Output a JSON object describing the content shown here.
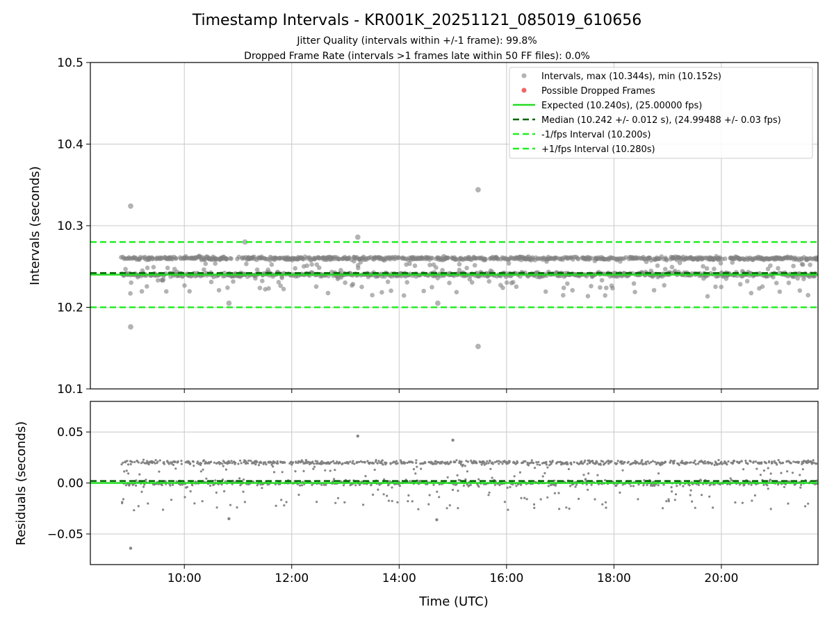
{
  "figure": {
    "title": "Timestamp Intervals - KR001K_20251121_085019_610656",
    "subtitle_line1": "Jitter Quality (intervals within +/-1 frame): 99.8%",
    "subtitle_line2": "Dropped Frame Rate (intervals >1 frames late within 50 FF files): 0.0%"
  },
  "colors": {
    "points": "#808080",
    "dropped": "#ee5555",
    "expected": "#22dd22",
    "median": "#006400",
    "interval": "#22ee22",
    "grid": "#c8c8c8"
  },
  "chart_data": [
    {
      "type": "scatter",
      "panel": "intervals",
      "ylabel": "Intervals (seconds)",
      "xlabel": "",
      "xlim": [
        8.25,
        21.8
      ],
      "ylim": [
        10.1,
        10.5
      ],
      "yticks": [
        10.1,
        10.2,
        10.3,
        10.4,
        10.5
      ],
      "ytick_labels": [
        "10.1",
        "10.2",
        "10.3",
        "10.4",
        "10.5"
      ],
      "xticks": [
        10,
        12,
        14,
        16,
        18,
        20
      ],
      "xtick_labels": [
        "10:00",
        "12:00",
        "14:00",
        "16:00",
        "18:00",
        "20:00"
      ],
      "grid": true,
      "legend_position": "top-right",
      "series_points": {
        "name": "Intervals, max (10.344s), min (10.152s)",
        "x_range": [
          8.83,
          21.8
        ],
        "bands": [
          10.26,
          10.24
        ],
        "spread": 0.02,
        "max": 10.344,
        "min": 10.152,
        "outliers": [
          [
            9.0,
            10.324
          ],
          [
            9.0,
            10.176
          ],
          [
            15.47,
            10.344
          ],
          [
            15.47,
            10.152
          ],
          [
            13.23,
            10.286
          ],
          [
            11.13,
            10.28
          ],
          [
            14.72,
            10.205
          ],
          [
            10.83,
            10.205
          ]
        ]
      },
      "dropped_frames": {
        "name": "Possible Dropped Frames",
        "count": 0
      },
      "lines": [
        {
          "name": "Expected (10.240s), (25.00000 fps)",
          "y": 10.24,
          "style": "solid"
        },
        {
          "name": "Median (10.242 +/- 0.012 s), (24.99488 +/- 0.03 fps)",
          "y": 10.242,
          "style": "dashed"
        },
        {
          "name": "-1/fps Interval (10.200s)",
          "y": 10.2,
          "style": "dashed"
        },
        {
          "name": "+1/fps Interval (10.280s)",
          "y": 10.28,
          "style": "dashed"
        }
      ]
    },
    {
      "type": "scatter",
      "panel": "residuals",
      "ylabel": "Residuals (seconds)",
      "xlabel": "Time (UTC)",
      "xlim": [
        8.25,
        21.8
      ],
      "ylim": [
        -0.08,
        0.08
      ],
      "yticks": [
        0.05,
        0.0,
        -0.05
      ],
      "ytick_labels": [
        "0.05",
        "0.00",
        "−0.05"
      ],
      "xticks": [
        10,
        12,
        14,
        16,
        18,
        20
      ],
      "xtick_labels": [
        "10:00",
        "12:00",
        "14:00",
        "16:00",
        "18:00",
        "20:00"
      ],
      "grid": true,
      "series_points": {
        "name": "Residuals",
        "x_range": [
          8.83,
          21.8
        ],
        "bands": [
          0.02,
          0.0
        ],
        "spread": 0.02,
        "outliers": [
          [
            9.0,
            -0.064
          ],
          [
            13.23,
            0.046
          ],
          [
            15.0,
            0.042
          ],
          [
            14.7,
            -0.036
          ],
          [
            10.83,
            -0.035
          ]
        ]
      },
      "lines": [
        {
          "name": "Expected",
          "y": 0.0,
          "style": "solid"
        },
        {
          "name": "Median",
          "y": 0.002,
          "style": "dashed"
        }
      ]
    }
  ]
}
